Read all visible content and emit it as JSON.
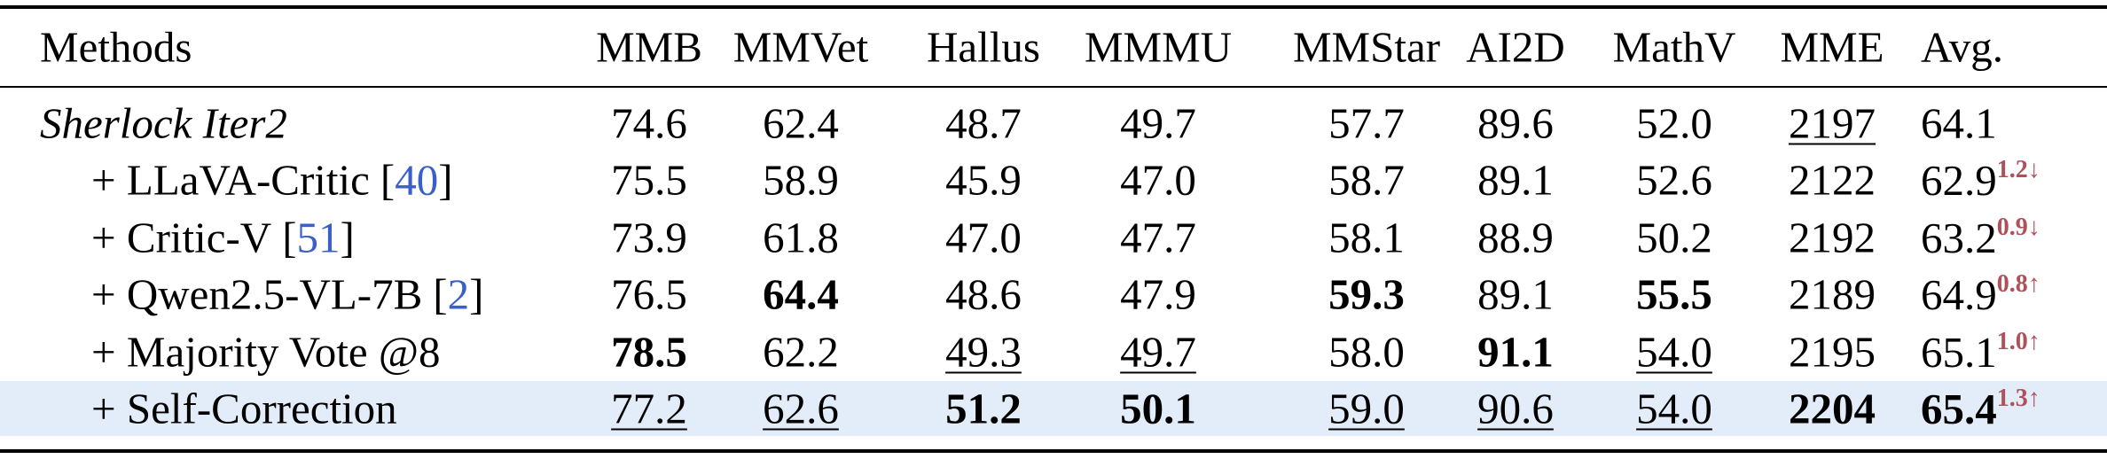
{
  "table": {
    "header": [
      "Methods",
      "MMB",
      "MMVet",
      "Hallus",
      "MMMU",
      "MMStar",
      "AI2D",
      "MathV",
      "MME",
      "Avg."
    ],
    "rows": [
      {
        "method": {
          "text": "Sherlock Iter2",
          "style": "italic"
        },
        "cells": [
          "74.6",
          "62.4",
          "48.7",
          "49.7",
          "57.7",
          "89.6",
          "52.0",
          {
            "text": "2197",
            "style": "underline"
          },
          "64.1"
        ]
      },
      {
        "method": {
          "text": "+ LLaVA-Critic",
          "ref": "[40]"
        },
        "cells": [
          "75.5",
          "58.9",
          "45.9",
          "47.0",
          "58.7",
          "89.1",
          "52.6",
          "2122",
          {
            "text": "62.9",
            "delta": "1.2↓"
          }
        ]
      },
      {
        "method": {
          "text": "+ Critic-V",
          "ref": "[51]"
        },
        "cells": [
          "73.9",
          "61.8",
          "47.0",
          "47.7",
          "58.1",
          "88.9",
          "50.2",
          "2192",
          {
            "text": "63.2",
            "delta": "0.9↓"
          }
        ]
      },
      {
        "method": {
          "text": "+ Qwen2.5-VL-7B",
          "ref": "[2]"
        },
        "cells": [
          "76.5",
          {
            "text": "64.4",
            "style": "bold"
          },
          "48.6",
          "47.9",
          {
            "text": "59.3",
            "style": "bold"
          },
          "89.1",
          {
            "text": "55.5",
            "style": "bold"
          },
          "2189",
          {
            "text": "64.9",
            "delta": "0.8↑"
          }
        ]
      },
      {
        "method": {
          "text": "+ Majority Vote @8"
        },
        "cells": [
          {
            "text": "78.5",
            "style": "bold"
          },
          "62.2",
          {
            "text": "49.3",
            "style": "underline"
          },
          {
            "text": "49.7",
            "style": "underline"
          },
          "58.0",
          {
            "text": "91.1",
            "style": "bold"
          },
          {
            "text": "54.0",
            "style": "underline"
          },
          "2195",
          {
            "text": "65.1",
            "delta": "1.0↑"
          }
        ]
      },
      {
        "method": {
          "text": "+ Self-Correction"
        },
        "highlight": true,
        "cells": [
          {
            "text": "77.2",
            "style": "underline"
          },
          {
            "text": "62.6",
            "style": "underline"
          },
          {
            "text": "51.2",
            "style": "bold"
          },
          {
            "text": "50.1",
            "style": "bold"
          },
          {
            "text": "59.0",
            "style": "underline"
          },
          {
            "text": "90.6",
            "style": "underline"
          },
          {
            "text": "54.0",
            "style": "underline"
          },
          {
            "text": "2204",
            "style": "bold"
          },
          {
            "text": "65.4",
            "style": "bold",
            "delta": "1.3↑"
          }
        ]
      }
    ]
  }
}
